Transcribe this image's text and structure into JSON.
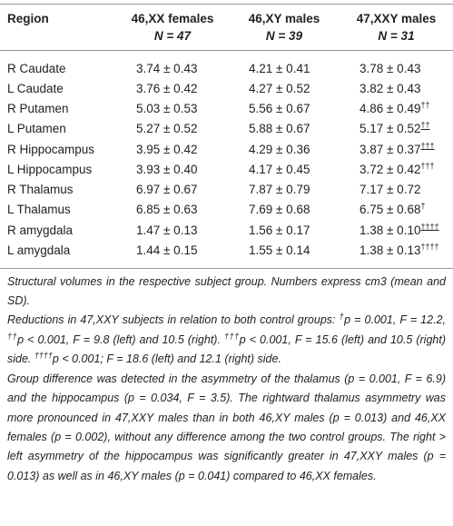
{
  "table": {
    "header": [
      {
        "group": "Region"
      },
      {
        "group": "46,XX females",
        "n": "N = 47"
      },
      {
        "group": "46,XY males",
        "n": "N = 39"
      },
      {
        "group": "47,XXY males",
        "n": "N = 31"
      }
    ],
    "rows": [
      {
        "region": "R Caudate",
        "cells": [
          "3.74 ± 0.43",
          "4.21 ± 0.41",
          "3.78 ± 0.43"
        ]
      },
      {
        "region": "L Caudate",
        "cells": [
          "3.76 ± 0.42",
          "4.27 ± 0.52",
          "3.82 ± 0.43"
        ]
      },
      {
        "region": "R Putamen",
        "cells": [
          "5.03 ± 0.53",
          "5.56 ± 0.67",
          "4.86 ± 0.49"
        ],
        "mark": "††"
      },
      {
        "region": "L Putamen",
        "cells": [
          "5.27 ± 0.52",
          "5.88 ± 0.67",
          "5.17 ± 0.52"
        ],
        "mark": "††",
        "mark_underline": true
      },
      {
        "region": "R Hippocampus",
        "cells": [
          "3.95 ± 0.42",
          "4.29 ± 0.36",
          "3.87 ± 0.37"
        ],
        "mark": "†††",
        "mark_underline": true
      },
      {
        "region": "L Hippocampus",
        "cells": [
          "3.93 ± 0.40",
          "4.17 ± 0.45",
          "3.72 ± 0.42"
        ],
        "mark": "†††"
      },
      {
        "region": "R Thalamus",
        "cells": [
          "6.97 ± 0.67",
          "7.87 ± 0.79",
          "7.17 ± 0.72"
        ]
      },
      {
        "region": "L Thalamus",
        "cells": [
          "6.85 ± 0.63",
          "7.69 ± 0.68",
          "6.75 ± 0.68"
        ],
        "mark": "†"
      },
      {
        "region": "R amygdala",
        "cells": [
          "1.47 ± 0.13",
          "1.56 ± 0.17",
          "1.38 ± 0.10"
        ],
        "mark": "††††",
        "mark_underline": true
      },
      {
        "region": "L amygdala",
        "cells": [
          "1.44 ± 0.15",
          "1.55 ± 0.14",
          "1.38 ± 0.13"
        ],
        "mark": "††††"
      }
    ]
  },
  "notes": [
    [
      {
        "t": "Structural volumes in the respective subject group. Numbers express cm3 (mean and SD)."
      }
    ],
    [
      {
        "t": "Reductions in 47,XXY subjects in relation to both control groups: "
      },
      {
        "sup": "†"
      },
      {
        "t": "p = 0.001, F = 12.2, "
      },
      {
        "sup": "††"
      },
      {
        "t": "p < 0.001, F = 9.8 (left) and 10.5 (right). "
      },
      {
        "sup": "†††"
      },
      {
        "t": "p < 0.001, F = 15.6 (left) and 10.5 (right) side. "
      },
      {
        "sup": "††††"
      },
      {
        "t": "p < 0.001; F = 18.6 (left) and 12.1 (right) side."
      }
    ],
    [
      {
        "t": "Group difference was detected in the asymmetry of the thalamus (p = 0.001, F = 6.9) and the hippocampus (p = 0.034, F = 3.5). The rightward thalamus asymmetry was more pronounced in 47,XXY males than in both 46,XY males (p = 0.013) and 46,XX females (p = 0.002), without any difference among the two control groups. The right > left asymmetry of the hippocampus was significantly greater in 47,XXY males (p = 0.013) as well as in 46,XY males (p = 0.041) compared to 46,XX females."
      }
    ]
  ]
}
